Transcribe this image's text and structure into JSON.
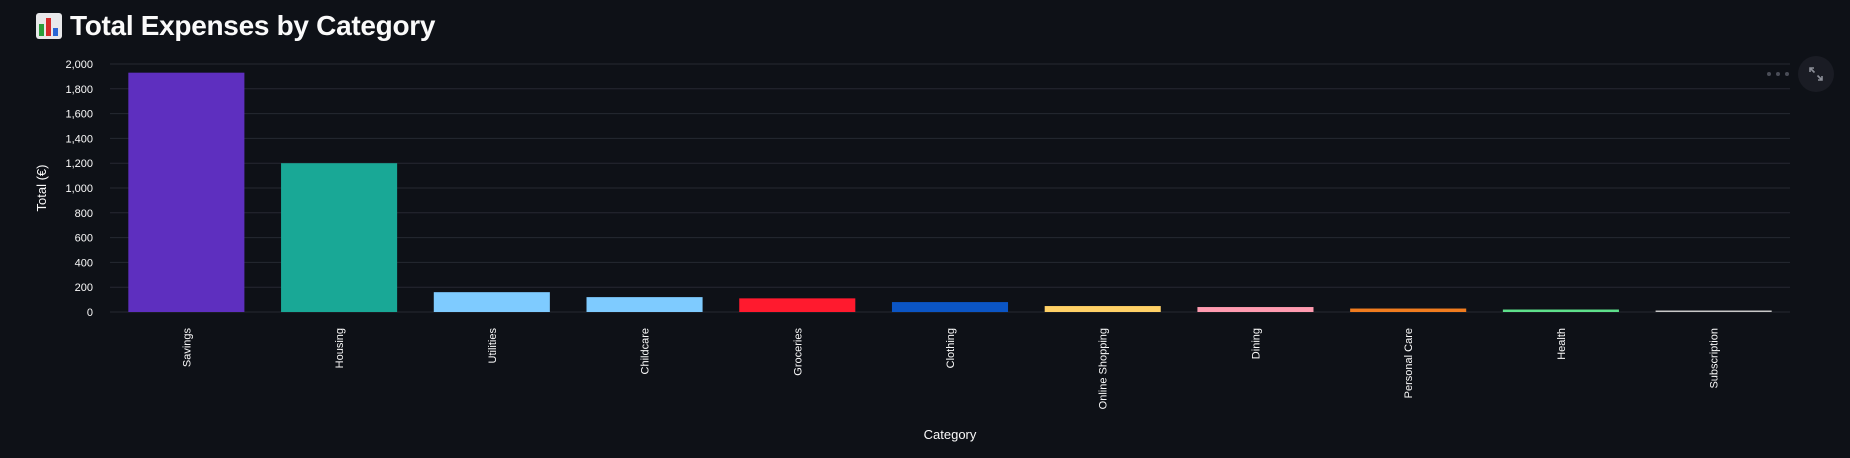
{
  "page": {
    "title": "Total Expenses by Category",
    "title_icon": "bar-chart-emoji"
  },
  "toolbar": {
    "expand_icon": "expand-icon",
    "more_icon": "more-options-icon"
  },
  "chart_data": {
    "type": "bar",
    "categories": [
      "Savings",
      "Housing",
      "Utilities",
      "Childcare",
      "Groceries",
      "Clothing",
      "Online Shopping",
      "Dining",
      "Personal Care",
      "Health",
      "Subscription"
    ],
    "values": [
      1930,
      1200,
      160,
      120,
      110,
      80,
      48,
      40,
      28,
      20,
      12
    ],
    "colors": [
      "#5e2fbf",
      "#19a896",
      "#7ecbff",
      "#7ecbff",
      "#ff1a2e",
      "#0b55c4",
      "#ffd166",
      "#ff9bb0",
      "#f07c1f",
      "#5ee08b",
      "#c8c8c8"
    ],
    "xlabel": "Category",
    "ylabel": "Total (€)",
    "ylim": [
      0,
      2000
    ],
    "yticks": [
      0,
      200,
      400,
      600,
      800,
      1000,
      1200,
      1400,
      1600,
      1800,
      2000
    ],
    "ytick_labels": [
      "0",
      "200",
      "400",
      "600",
      "800",
      "1,000",
      "1,200",
      "1,400",
      "1,600",
      "1,800",
      "2,000"
    ],
    "grid": true,
    "legend": "none"
  }
}
